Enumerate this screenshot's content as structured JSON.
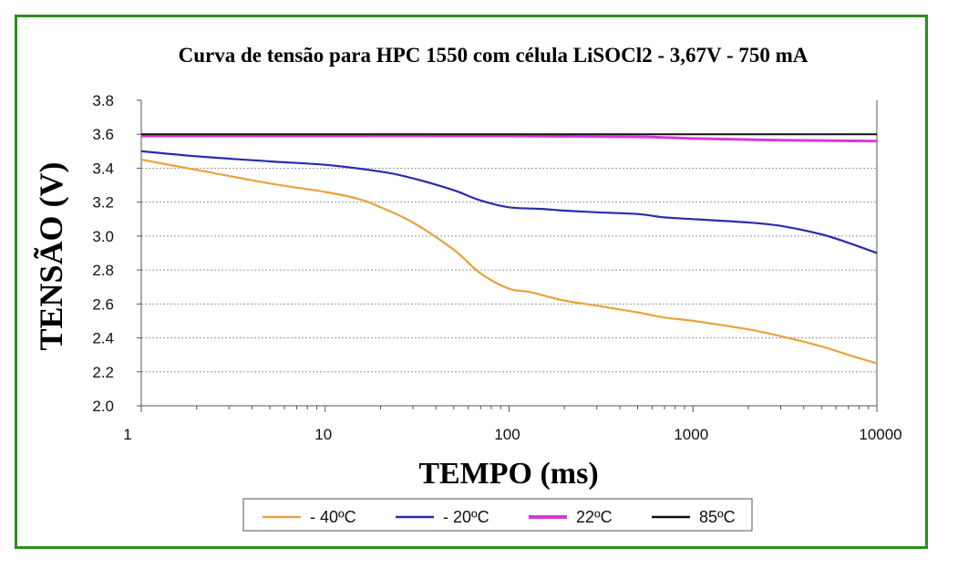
{
  "chart_data": {
    "type": "line",
    "title": "Curva de tensão para HPC 1550 com célula LiSOCl2 - 3,67V - 750 mA",
    "xlabel": "TEMPO (ms)",
    "ylabel": "TENSÃO (V)",
    "xscale": "log",
    "xlim": [
      1,
      10000
    ],
    "ylim": [
      2.0,
      3.8
    ],
    "xticks": [
      1,
      10,
      100,
      1000,
      10000
    ],
    "xtick_labels": [
      "1",
      "10",
      "100",
      "1000",
      "10000"
    ],
    "yticks": [
      2.0,
      2.2,
      2.4,
      2.6,
      2.8,
      3.0,
      3.2,
      3.4,
      3.6,
      3.8
    ],
    "ytick_labels": [
      "2.0",
      "2.2",
      "2.4",
      "2.6",
      "2.8",
      "3.0",
      "3.2",
      "3.4",
      "3.6",
      "3.8"
    ],
    "grid": true,
    "legend_position": "bottom",
    "series": [
      {
        "name": "- 40ºC",
        "color": "#e8a33a",
        "points": [
          [
            1,
            3.45
          ],
          [
            2,
            3.39
          ],
          [
            5,
            3.31
          ],
          [
            10,
            3.26
          ],
          [
            15,
            3.22
          ],
          [
            20,
            3.17
          ],
          [
            30,
            3.08
          ],
          [
            50,
            2.92
          ],
          [
            70,
            2.78
          ],
          [
            100,
            2.69
          ],
          [
            130,
            2.67
          ],
          [
            200,
            2.62
          ],
          [
            300,
            2.59
          ],
          [
            500,
            2.55
          ],
          [
            700,
            2.52
          ],
          [
            1000,
            2.5
          ],
          [
            2000,
            2.45
          ],
          [
            3000,
            2.41
          ],
          [
            5000,
            2.35
          ],
          [
            7000,
            2.3
          ],
          [
            10000,
            2.25
          ]
        ]
      },
      {
        "name": "- 20ºC",
        "color": "#2b2bb0",
        "points": [
          [
            1,
            3.5
          ],
          [
            2,
            3.47
          ],
          [
            5,
            3.44
          ],
          [
            10,
            3.42
          ],
          [
            20,
            3.38
          ],
          [
            30,
            3.34
          ],
          [
            50,
            3.27
          ],
          [
            70,
            3.21
          ],
          [
            100,
            3.17
          ],
          [
            150,
            3.16
          ],
          [
            200,
            3.15
          ],
          [
            300,
            3.14
          ],
          [
            500,
            3.13
          ],
          [
            700,
            3.11
          ],
          [
            1000,
            3.1
          ],
          [
            2000,
            3.08
          ],
          [
            3000,
            3.06
          ],
          [
            5000,
            3.01
          ],
          [
            7000,
            2.96
          ],
          [
            10000,
            2.9
          ]
        ]
      },
      {
        "name": "22ºC",
        "color": "#d63ad6",
        "points": [
          [
            1,
            3.59
          ],
          [
            10,
            3.59
          ],
          [
            100,
            3.59
          ],
          [
            500,
            3.585
          ],
          [
            1000,
            3.575
          ],
          [
            3000,
            3.565
          ],
          [
            10000,
            3.56
          ]
        ]
      },
      {
        "name": "85ºC",
        "color": "#111111",
        "points": [
          [
            1,
            3.6
          ],
          [
            10,
            3.6
          ],
          [
            100,
            3.6
          ],
          [
            1000,
            3.6
          ],
          [
            10000,
            3.6
          ]
        ]
      }
    ]
  }
}
